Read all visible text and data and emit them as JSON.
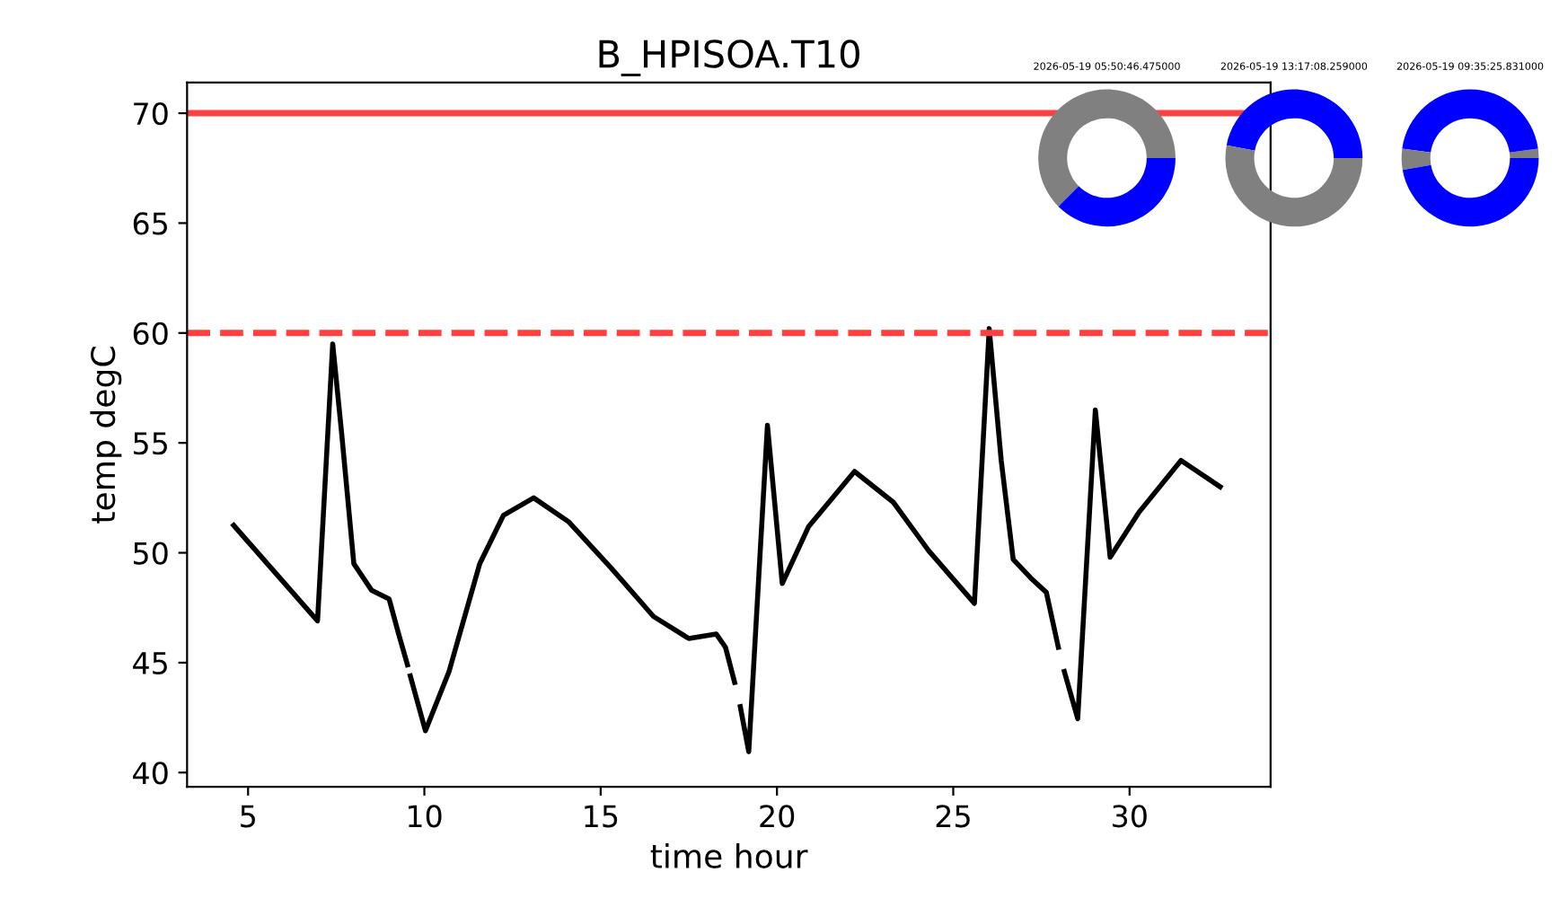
{
  "chart_data": [
    {
      "type": "line",
      "title": "B_HPISOA.T10",
      "xlabel": "time hour",
      "ylabel": "temp degC",
      "x": [
        4.59,
        6.97,
        7.4,
        7.65,
        8.0,
        8.5,
        9.0,
        9.27,
        9.52,
        9.56,
        9.6,
        10.03,
        10.7,
        11.57,
        12.24,
        13.1,
        14.1,
        15.3,
        16.5,
        17.5,
        18.28,
        18.54,
        18.8,
        18.88,
        18.96,
        19.2,
        19.73,
        20.15,
        20.9,
        22.2,
        23.3,
        24.3,
        25.6,
        26.02,
        26.36,
        26.7,
        27.2,
        27.64,
        27.98,
        28.06,
        28.15,
        28.53,
        29.03,
        29.45,
        30.27,
        31.46,
        32.57
      ],
      "series": [
        {
          "color": "#000000",
          "values": [
            51.25,
            46.9,
            59.5,
            55.5,
            49.5,
            48.3,
            47.9,
            46.3,
            44.9,
            null,
            44.4,
            41.9,
            44.6,
            49.5,
            51.7,
            52.5,
            51.4,
            49.3,
            47.1,
            46.1,
            46.3,
            45.7,
            44.1,
            null,
            43.0,
            40.95,
            55.8,
            48.6,
            51.2,
            53.7,
            52.3,
            50.1,
            47.7,
            60.2,
            54.2,
            49.7,
            48.85,
            48.2,
            45.7,
            null,
            44.6,
            42.45,
            56.5,
            49.8,
            51.85,
            54.2,
            53.0
          ]
        }
      ],
      "xlim": [
        3.27,
        34.0
      ],
      "ylim": [
        39.35,
        71.4
      ],
      "xticks": [
        5,
        10,
        15,
        20,
        25,
        30
      ],
      "yticks": [
        40,
        45,
        50,
        55,
        60,
        65,
        70
      ],
      "ref_lines": [
        {
          "axis": "y",
          "value": 70,
          "color": "#ff4040",
          "line_style": "solid"
        },
        {
          "axis": "y",
          "value": 60,
          "color": "#ff4040",
          "line_style": "dashed"
        }
      ],
      "grid": false,
      "legend": false
    },
    {
      "type": "donut",
      "title": "2026-05-19 05:50:46.475000",
      "categories": [
        null,
        null
      ],
      "values": [
        62.5,
        37.5
      ],
      "colors": [
        "#808080",
        "#0000ff"
      ]
    },
    {
      "type": "donut",
      "title": "2026-05-19 13:17:08.259000",
      "categories": [
        null,
        null
      ],
      "values": [
        47,
        53
      ],
      "colors": [
        "#0000ff",
        "#808080"
      ]
    },
    {
      "type": "donut",
      "title": "2026-05-19 09:35:25.831000",
      "categories": [
        null,
        null,
        null,
        null
      ],
      "values": [
        2.2,
        45.6,
        5,
        47.2
      ],
      "colors": [
        "#808080",
        "#0000ff",
        "#808080",
        "#0000ff"
      ]
    }
  ]
}
